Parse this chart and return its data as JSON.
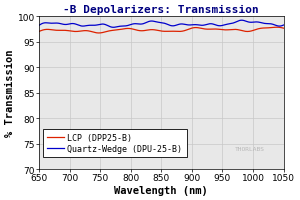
{
  "title": "-B Depolarizers: Transmission",
  "xlabel": "Wavelength (nm)",
  "ylabel": "% Transmission",
  "xlim": [
    650,
    1050
  ],
  "ylim": [
    70,
    100
  ],
  "yticks": [
    70,
    75,
    80,
    85,
    90,
    95,
    100
  ],
  "xticks": [
    650,
    700,
    750,
    800,
    850,
    900,
    950,
    1000,
    1050
  ],
  "grid_color": "#c8c8c8",
  "bg_color": "#e8e8e8",
  "lcp_color": "#dd2200",
  "qw_color": "#0000cc",
  "legend_label_lcp": "LCP (DPP25-B)",
  "legend_label_qw": "Quartz-Wedge (DPU-25-B)",
  "watermark": "THORLABS",
  "title_color": "#000080",
  "title_fontsize": 8,
  "axis_label_fontsize": 7.5,
  "tick_fontsize": 6.5,
  "legend_fontsize": 6.0
}
